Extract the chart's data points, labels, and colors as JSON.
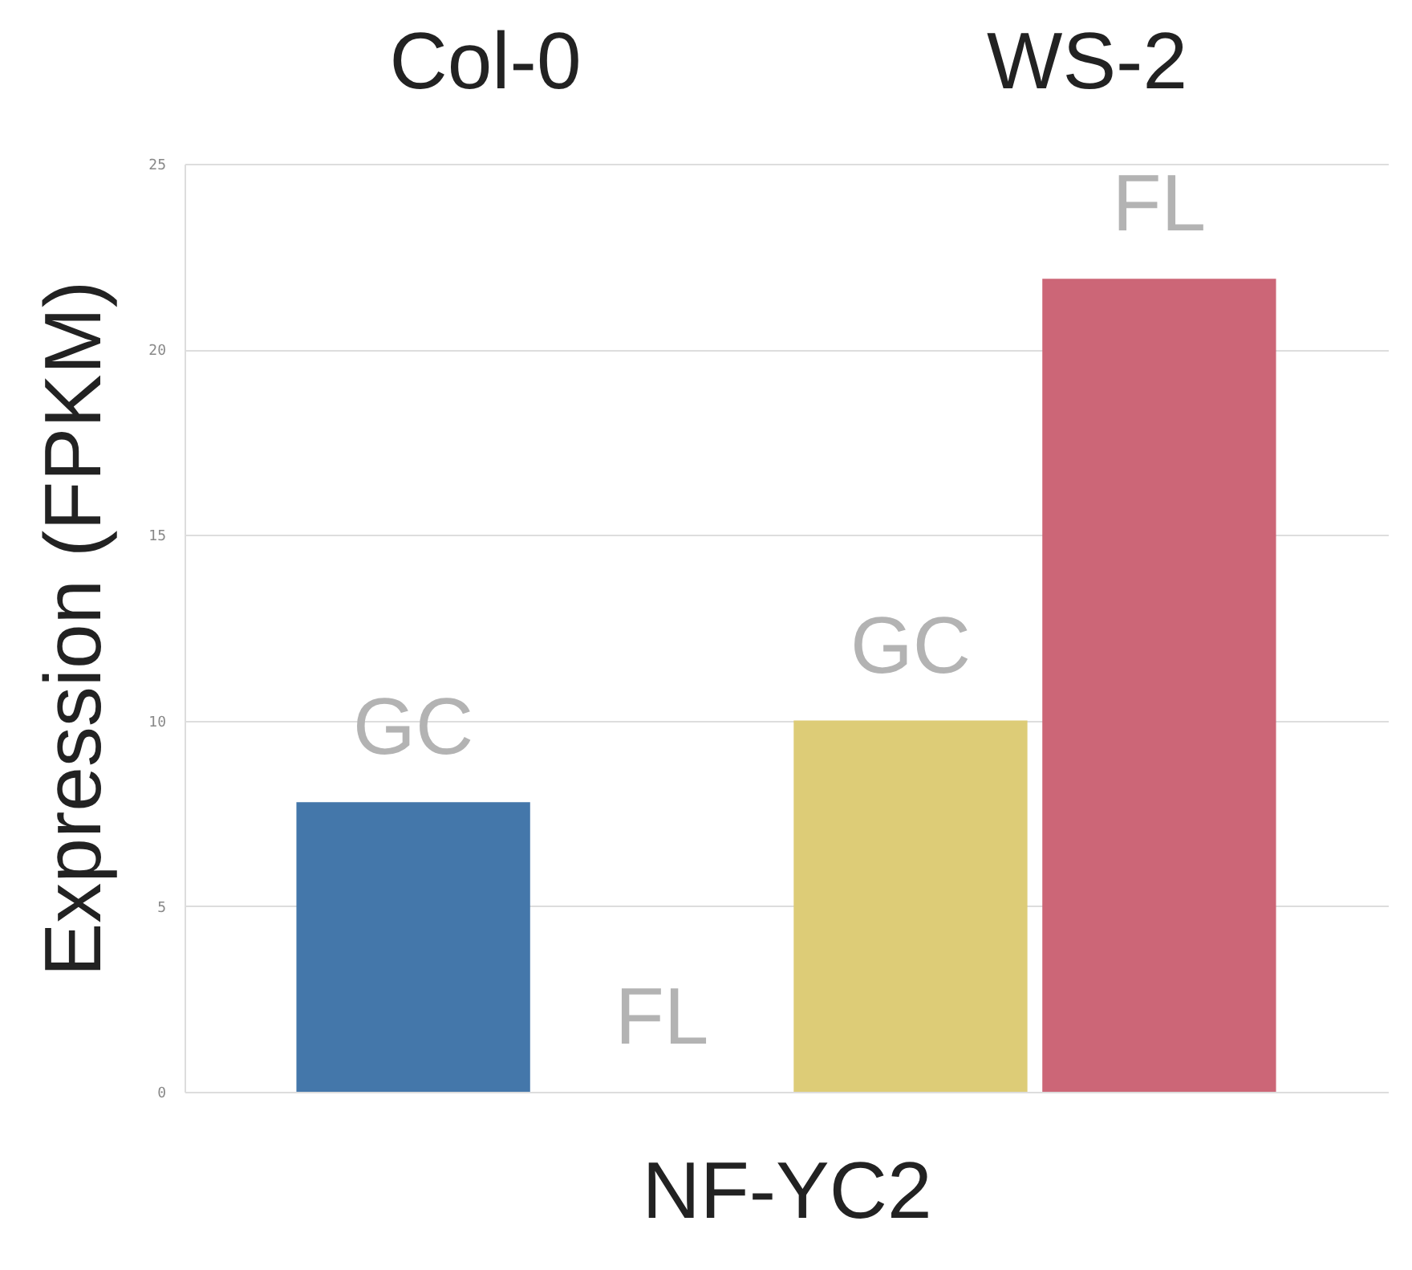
{
  "chart_data": {
    "type": "bar",
    "categories": [
      "GC",
      "FL",
      "GC",
      "FL"
    ],
    "values": [
      7.8,
      0,
      10,
      21.9
    ],
    "colors": [
      "#4477aa",
      "#ddcc77",
      "#ddcc77",
      "#cc6677"
    ],
    "xlabel": "NF-YC2",
    "ylabel": "Expression (FPKM)",
    "annotations": [
      "Col-0",
      "WS-2"
    ],
    "ylim": [
      0,
      25
    ],
    "yticks": [
      0,
      5,
      10,
      15,
      20,
      25
    ],
    "grid": "y"
  }
}
